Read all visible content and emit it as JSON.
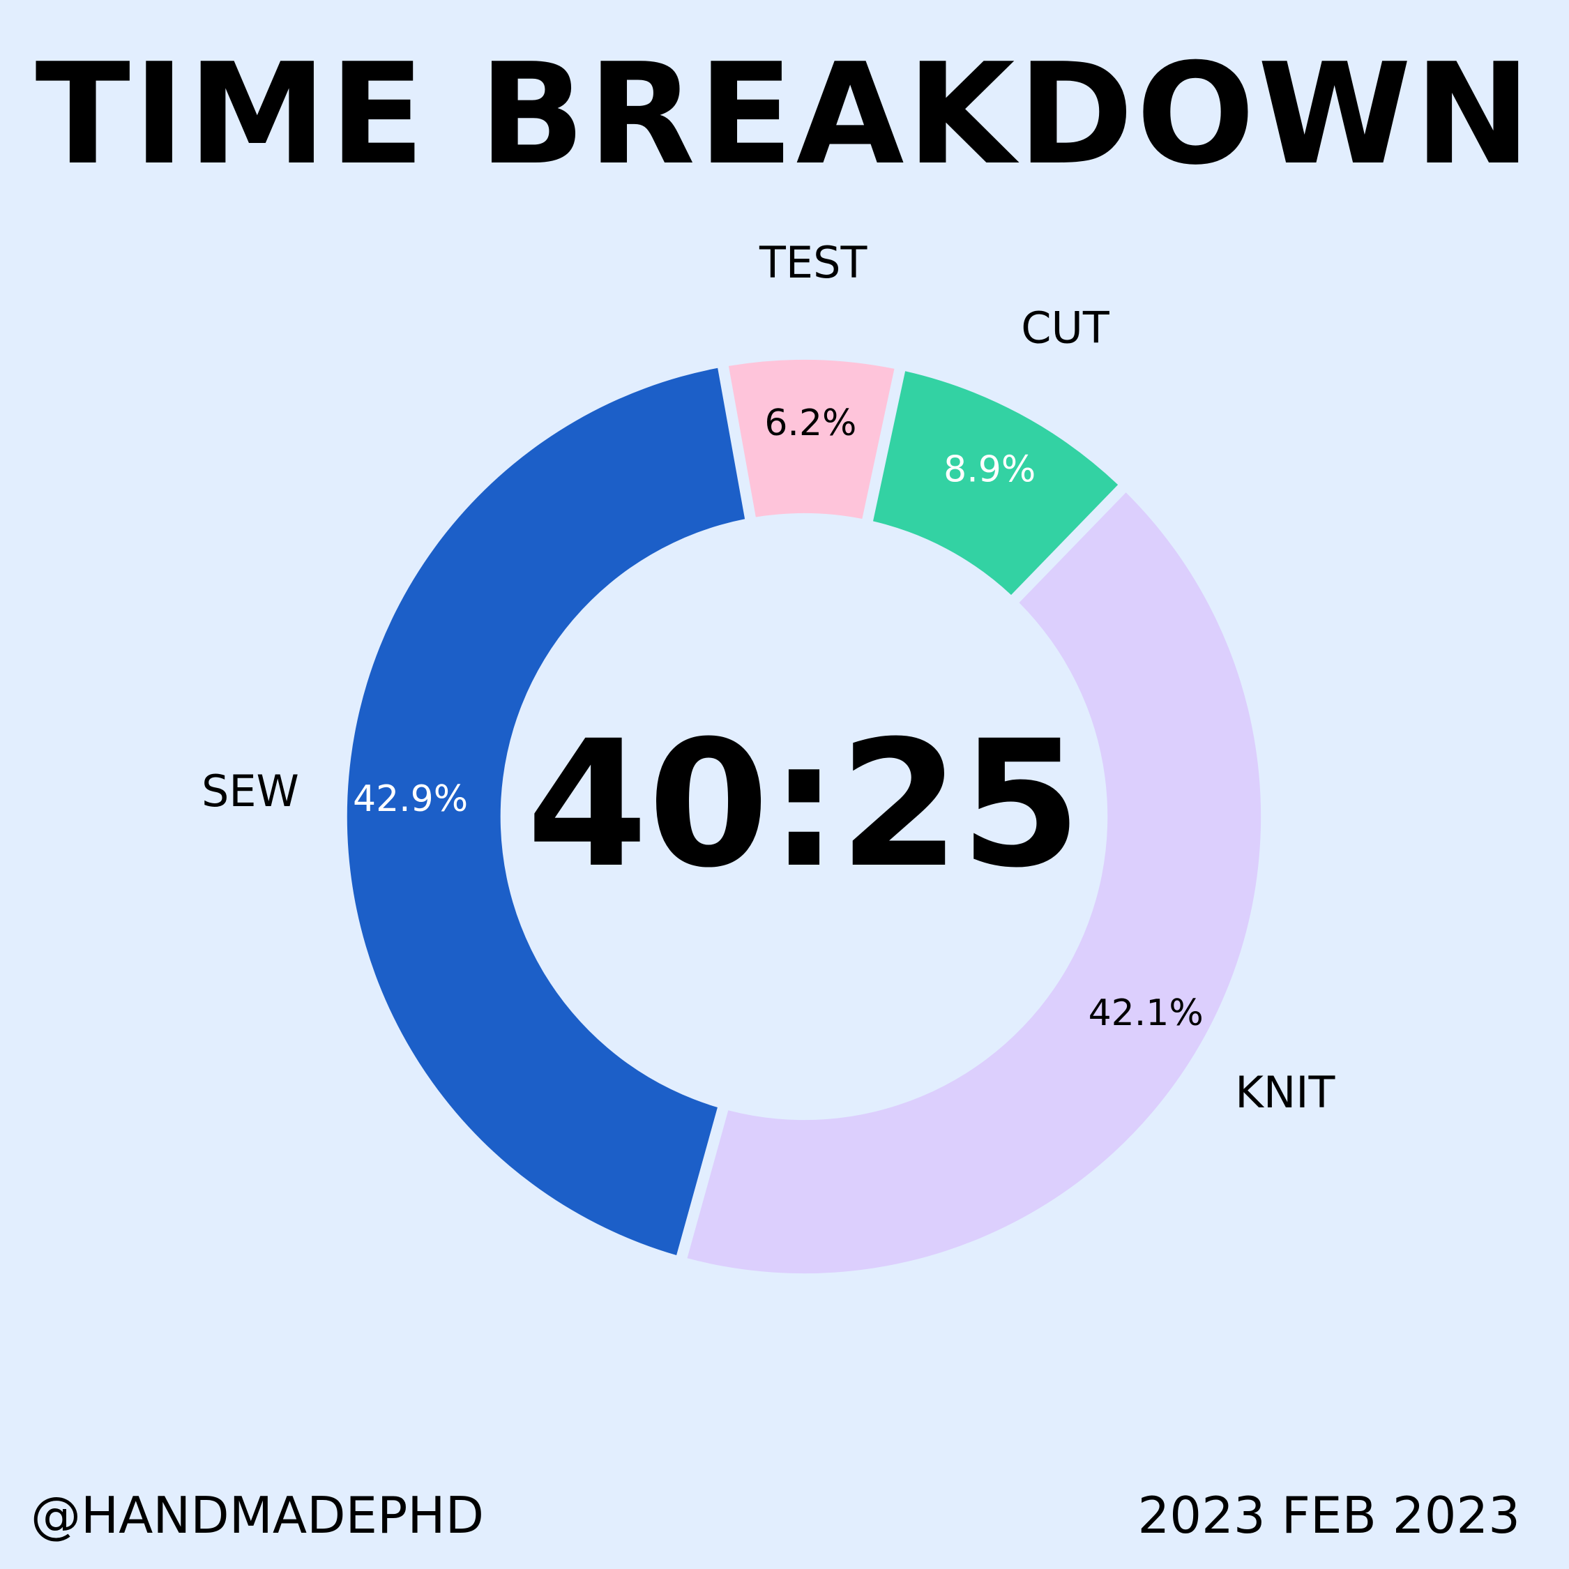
{
  "chart_data": {
    "type": "pie",
    "title": "TIME BREAKDOWN",
    "center_label": "40:25",
    "slices": [
      {
        "label": "CUT",
        "value_label": "8.9%",
        "value": 8.9,
        "color": "#33d2a3",
        "value_color": "#ffffff"
      },
      {
        "label": "KNIT",
        "value_label": "42.1%",
        "value": 42.1,
        "color": "#dccffd",
        "value_color": "#000000"
      },
      {
        "label": "SEW",
        "value_label": "42.9%",
        "value": 42.9,
        "color": "#1c5fc8",
        "value_color": "#ffffff"
      },
      {
        "label": "TEST",
        "value_label": "6.2%",
        "value": 6.2,
        "color": "#fec4da",
        "value_color": "#000000"
      }
    ],
    "start_angle_deg": 77.9,
    "direction": "clockwise",
    "legend": "none"
  },
  "footer": {
    "handle": "@HANDMADEPHD",
    "date": "2023 FEB 2023"
  },
  "colors": {
    "background": "#e2eefe",
    "text": "#000000"
  }
}
